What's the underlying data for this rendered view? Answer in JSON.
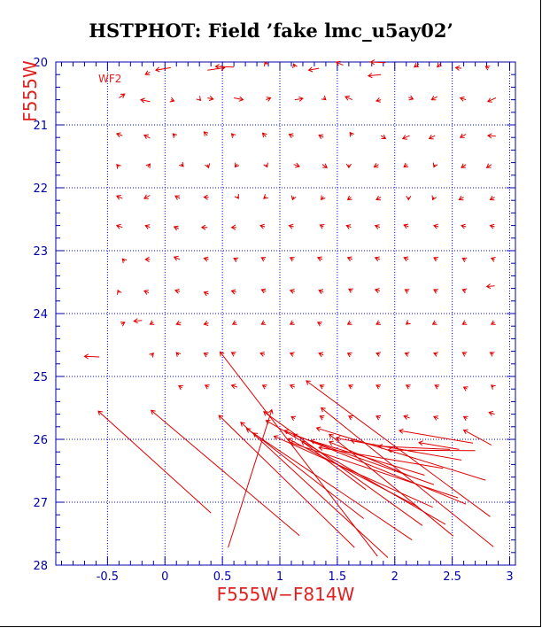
{
  "chart_data": {
    "type": "vector-field",
    "title": "HSTPHOT: Field ’fake lmc_u5ay02’",
    "xlabel": "F555W−F814W",
    "ylabel": "F555W",
    "panel_label": "WF2",
    "xlim": [
      -0.95,
      3.05
    ],
    "ylim": [
      28,
      20
    ],
    "xticks": [
      -0.5,
      0,
      0.5,
      1,
      1.5,
      2,
      2.5,
      3
    ],
    "xtick_labels": [
      "-0.5",
      "0",
      "0.5",
      "1",
      "1.5",
      "2",
      "2.5",
      "3"
    ],
    "yticks": [
      20,
      21,
      22,
      23,
      24,
      25,
      26,
      27,
      28
    ],
    "ytick_labels": [
      "20",
      "21",
      "22",
      "23",
      "24",
      "25",
      "26",
      "27",
      "28"
    ],
    "grid": true,
    "colors": {
      "axes": "#0000aa",
      "grid": "#0000ff",
      "vectors": "#e00000",
      "labels": "#e02020",
      "title": "#000000"
    },
    "vectors_short": [
      [
        -0.13,
        20.16,
        -0.17,
        20.2
      ],
      [
        0.05,
        20.09,
        -0.08,
        20.13
      ],
      [
        0.37,
        20.13,
        0.52,
        20.09
      ],
      [
        0.6,
        20.08,
        0.44,
        20.07
      ],
      [
        0.88,
        20.04,
        0.87,
        20.0
      ],
      [
        1.13,
        20.08,
        1.12,
        20.03
      ],
      [
        1.34,
        20.1,
        1.25,
        20.13
      ],
      [
        1.55,
        20.05,
        1.49,
        20.0
      ],
      [
        1.88,
        20.2,
        1.77,
        20.22
      ],
      [
        1.92,
        20.01,
        1.79,
        20.0
      ],
      [
        2.21,
        20.03,
        2.17,
        20.08
      ],
      [
        2.4,
        20.02,
        2.37,
        20.08
      ],
      [
        2.58,
        20.1,
        2.53,
        20.09
      ],
      [
        2.82,
        20.1,
        2.79,
        20.07
      ],
      [
        -0.4,
        20.57,
        -0.35,
        20.51
      ],
      [
        -0.13,
        20.63,
        -0.21,
        20.6
      ],
      [
        0.05,
        20.6,
        0.08,
        20.62
      ],
      [
        0.3,
        20.59,
        0.31,
        20.61
      ],
      [
        0.37,
        20.57,
        0.42,
        20.59
      ],
      [
        0.6,
        20.57,
        0.68,
        20.6
      ],
      [
        0.88,
        20.6,
        0.92,
        20.57
      ],
      [
        1.13,
        20.6,
        1.2,
        20.58
      ],
      [
        1.38,
        20.57,
        1.4,
        20.6
      ],
      [
        1.63,
        20.6,
        1.57,
        20.55
      ],
      [
        1.88,
        20.6,
        1.84,
        20.62
      ],
      [
        2.12,
        20.56,
        2.16,
        20.59
      ],
      [
        2.37,
        20.55,
        2.32,
        20.6
      ],
      [
        2.62,
        20.6,
        2.57,
        20.57
      ],
      [
        2.88,
        20.57,
        2.81,
        20.63
      ],
      [
        -0.37,
        21.17,
        -0.42,
        21.14
      ],
      [
        -0.13,
        21.21,
        -0.18,
        21.16
      ],
      [
        0.09,
        21.18,
        0.07,
        21.14
      ],
      [
        0.37,
        21.17,
        0.34,
        21.11
      ],
      [
        0.6,
        21.18,
        0.58,
        21.14
      ],
      [
        0.88,
        21.19,
        0.85,
        21.13
      ],
      [
        1.12,
        21.18,
        1.08,
        21.15
      ],
      [
        1.38,
        21.2,
        1.34,
        21.16
      ],
      [
        1.63,
        21.17,
        1.61,
        21.12
      ],
      [
        1.88,
        21.17,
        1.92,
        21.22
      ],
      [
        2.13,
        21.17,
        2.07,
        21.22
      ],
      [
        2.35,
        21.17,
        2.3,
        21.22
      ],
      [
        2.62,
        21.15,
        2.57,
        21.2
      ],
      [
        2.88,
        21.18,
        2.81,
        21.17
      ],
      [
        -0.4,
        21.67,
        -0.42,
        21.63
      ],
      [
        -0.15,
        21.67,
        -0.13,
        21.62
      ],
      [
        0.14,
        21.62,
        0.16,
        21.66
      ],
      [
        0.37,
        21.63,
        0.38,
        21.68
      ],
      [
        0.63,
        21.62,
        0.61,
        21.67
      ],
      [
        0.88,
        21.63,
        0.89,
        21.67
      ],
      [
        1.12,
        21.63,
        1.17,
        21.66
      ],
      [
        1.37,
        21.63,
        1.41,
        21.68
      ],
      [
        1.6,
        21.63,
        1.6,
        21.68
      ],
      [
        1.86,
        21.63,
        1.82,
        21.67
      ],
      [
        2.11,
        21.63,
        2.08,
        21.67
      ],
      [
        2.35,
        21.63,
        2.34,
        21.67
      ],
      [
        2.62,
        21.63,
        2.58,
        21.68
      ],
      [
        2.84,
        21.63,
        2.8,
        21.68
      ],
      [
        -0.37,
        22.17,
        -0.42,
        22.13
      ],
      [
        -0.13,
        22.12,
        -0.18,
        22.17
      ],
      [
        0.13,
        22.17,
        0.09,
        22.13
      ],
      [
        0.38,
        22.15,
        0.34,
        22.15
      ],
      [
        0.63,
        22.14,
        0.64,
        22.17
      ],
      [
        0.88,
        22.14,
        0.86,
        22.17
      ],
      [
        1.12,
        22.14,
        1.11,
        22.19
      ],
      [
        1.38,
        22.14,
        1.36,
        22.19
      ],
      [
        1.62,
        22.15,
        1.59,
        22.19
      ],
      [
        1.88,
        22.15,
        1.84,
        22.19
      ],
      [
        2.12,
        22.15,
        2.12,
        22.19
      ],
      [
        2.34,
        22.15,
        2.33,
        22.19
      ],
      [
        2.6,
        22.15,
        2.56,
        22.19
      ],
      [
        2.87,
        22.15,
        2.83,
        22.19
      ],
      [
        -0.37,
        22.63,
        -0.42,
        22.6
      ],
      [
        -0.13,
        22.63,
        -0.17,
        22.6
      ],
      [
        0.12,
        22.65,
        0.08,
        22.62
      ],
      [
        0.37,
        22.63,
        0.32,
        22.63
      ],
      [
        0.62,
        22.63,
        0.58,
        22.63
      ],
      [
        0.87,
        22.62,
        0.83,
        22.6
      ],
      [
        1.12,
        22.62,
        1.08,
        22.6
      ],
      [
        1.38,
        22.62,
        1.35,
        22.59
      ],
      [
        1.62,
        22.63,
        1.58,
        22.6
      ],
      [
        1.87,
        22.63,
        1.83,
        22.6
      ],
      [
        2.12,
        22.62,
        2.08,
        22.59
      ],
      [
        2.38,
        22.62,
        2.34,
        22.6
      ],
      [
        2.62,
        22.62,
        2.58,
        22.6
      ],
      [
        2.87,
        22.62,
        2.83,
        22.6
      ],
      [
        -0.35,
        23.17,
        -0.37,
        23.13
      ],
      [
        -0.13,
        23.14,
        -0.17,
        23.14
      ],
      [
        0.13,
        23.14,
        0.08,
        23.1
      ],
      [
        0.38,
        23.14,
        0.34,
        23.12
      ],
      [
        0.63,
        23.15,
        0.6,
        23.12
      ],
      [
        0.87,
        23.14,
        0.84,
        23.11
      ],
      [
        1.12,
        23.14,
        1.09,
        23.11
      ],
      [
        1.37,
        23.14,
        1.33,
        23.11
      ],
      [
        1.63,
        23.14,
        1.59,
        23.11
      ],
      [
        1.87,
        23.14,
        1.83,
        23.11
      ],
      [
        2.12,
        23.14,
        2.08,
        23.11
      ],
      [
        2.37,
        23.14,
        2.34,
        23.11
      ],
      [
        2.62,
        23.15,
        2.59,
        23.12
      ],
      [
        2.87,
        23.14,
        2.84,
        23.12
      ],
      [
        -0.4,
        23.67,
        -0.41,
        23.63
      ],
      [
        -0.14,
        23.67,
        -0.18,
        23.64
      ],
      [
        0.13,
        23.65,
        0.09,
        23.63
      ],
      [
        0.38,
        23.69,
        0.34,
        23.66
      ],
      [
        0.62,
        23.66,
        0.58,
        23.64
      ],
      [
        0.88,
        23.65,
        0.84,
        23.62
      ],
      [
        1.13,
        23.65,
        1.09,
        23.63
      ],
      [
        1.38,
        23.66,
        1.34,
        23.63
      ],
      [
        1.63,
        23.64,
        1.6,
        23.61
      ],
      [
        1.87,
        23.64,
        1.83,
        23.62
      ],
      [
        2.12,
        23.65,
        2.09,
        23.62
      ],
      [
        2.37,
        23.65,
        2.34,
        23.62
      ],
      [
        2.62,
        23.64,
        2.59,
        23.62
      ],
      [
        2.87,
        23.56,
        2.8,
        23.57
      ],
      [
        -0.38,
        24.17,
        -0.35,
        24.14
      ],
      [
        -0.2,
        24.11,
        -0.27,
        24.12
      ],
      [
        -0.1,
        24.14,
        -0.13,
        24.17
      ],
      [
        0.14,
        24.14,
        0.1,
        24.17
      ],
      [
        0.38,
        24.15,
        0.34,
        24.17
      ],
      [
        0.62,
        24.14,
        0.59,
        24.17
      ],
      [
        0.87,
        24.14,
        0.84,
        24.17
      ],
      [
        1.12,
        24.14,
        1.09,
        24.17
      ],
      [
        1.36,
        24.17,
        1.33,
        24.14
      ],
      [
        1.62,
        24.14,
        1.59,
        24.17
      ],
      [
        1.87,
        24.14,
        1.84,
        24.17
      ],
      [
        2.12,
        24.14,
        2.1,
        24.17
      ],
      [
        2.36,
        24.14,
        2.33,
        24.17
      ],
      [
        2.62,
        24.14,
        2.59,
        24.17
      ],
      [
        2.87,
        24.14,
        2.84,
        24.17
      ],
      [
        -0.57,
        24.69,
        -0.7,
        24.68
      ],
      [
        -0.12,
        24.67,
        -0.1,
        24.63
      ],
      [
        0.12,
        24.66,
        0.1,
        24.62
      ],
      [
        0.37,
        24.66,
        0.34,
        24.63
      ],
      [
        0.61,
        24.65,
        0.58,
        24.62
      ],
      [
        0.87,
        24.65,
        0.83,
        24.63
      ],
      [
        1.12,
        24.65,
        1.09,
        24.63
      ],
      [
        1.38,
        24.66,
        1.34,
        24.63
      ],
      [
        1.62,
        24.66,
        1.59,
        24.63
      ],
      [
        1.87,
        24.65,
        1.84,
        24.63
      ],
      [
        2.12,
        24.65,
        2.09,
        24.63
      ],
      [
        2.37,
        24.65,
        2.34,
        24.63
      ],
      [
        2.62,
        24.65,
        2.59,
        24.62
      ],
      [
        2.86,
        24.65,
        2.83,
        24.62
      ],
      [
        0.15,
        25.18,
        0.12,
        25.15
      ],
      [
        0.38,
        25.17,
        0.35,
        25.14
      ],
      [
        0.63,
        25.17,
        0.58,
        25.14
      ],
      [
        0.88,
        25.17,
        0.85,
        25.14
      ],
      [
        1.13,
        25.17,
        1.09,
        25.14
      ],
      [
        1.38,
        25.17,
        1.35,
        25.14
      ],
      [
        1.63,
        25.17,
        1.6,
        25.14
      ],
      [
        1.87,
        25.17,
        1.84,
        25.14
      ],
      [
        2.13,
        25.17,
        2.1,
        25.14
      ],
      [
        2.38,
        25.17,
        2.35,
        25.14
      ],
      [
        2.63,
        25.2,
        2.6,
        25.17
      ],
      [
        2.86,
        25.17,
        2.84,
        25.14
      ],
      [
        1.13,
        25.67,
        1.1,
        25.64
      ],
      [
        1.38,
        25.66,
        1.35,
        25.63
      ],
      [
        1.63,
        25.66,
        1.6,
        25.63
      ],
      [
        1.87,
        25.66,
        1.84,
        25.63
      ],
      [
        2.13,
        25.66,
        2.08,
        25.63
      ],
      [
        2.38,
        25.67,
        2.34,
        25.64
      ],
      [
        2.63,
        25.67,
        2.6,
        25.64
      ],
      [
        2.87,
        25.6,
        2.82,
        25.57
      ]
    ],
    "vectors_long": [
      [
        0.4,
        27.17,
        -0.58,
        25.55
      ],
      [
        1.17,
        27.53,
        -0.12,
        25.54
      ],
      [
        0.55,
        27.72,
        0.93,
        25.53
      ],
      [
        1.65,
        27.72,
        0.47,
        25.62
      ],
      [
        1.85,
        27.86,
        0.48,
        24.61
      ],
      [
        1.94,
        27.88,
        0.66,
        25.73
      ],
      [
        2.15,
        27.6,
        0.71,
        25.83
      ],
      [
        1.73,
        27.26,
        0.77,
        25.9
      ],
      [
        2.24,
        27.37,
        0.86,
        25.56
      ],
      [
        2.44,
        27.35,
        0.88,
        25.7
      ],
      [
        2.33,
        27.08,
        0.95,
        25.95
      ],
      [
        2.2,
        27.07,
        1.07,
        25.99
      ],
      [
        2.62,
        27.03,
        1.04,
        25.86
      ],
      [
        2.55,
        26.93,
        1.09,
        26.05
      ],
      [
        1.75,
        26.8,
        1.19,
        26.03
      ],
      [
        2.34,
        26.72,
        1.12,
        25.93
      ],
      [
        2.26,
        26.57,
        1.27,
        26.02
      ],
      [
        2.79,
        26.65,
        1.32,
        25.82
      ],
      [
        2.42,
        26.46,
        1.34,
        26.13
      ],
      [
        2.83,
        27.23,
        1.23,
        25.07
      ],
      [
        2.86,
        27.71,
        1.36,
        25.5
      ],
      [
        2.51,
        27.54,
        1.43,
        25.92
      ],
      [
        2.14,
        26.59,
        1.43,
        26.04
      ],
      [
        2.58,
        26.33,
        1.49,
        25.98
      ],
      [
        2.18,
        26.2,
        1.62,
        26.02
      ],
      [
        2.48,
        26.16,
        1.86,
        26.11
      ],
      [
        2.7,
        26.18,
        1.94,
        26.17
      ],
      [
        2.68,
        26.06,
        2.04,
        25.86
      ],
      [
        2.56,
        26.16,
        2.21,
        26.05
      ],
      [
        2.84,
        26.09,
        2.6,
        25.85
      ]
    ]
  }
}
